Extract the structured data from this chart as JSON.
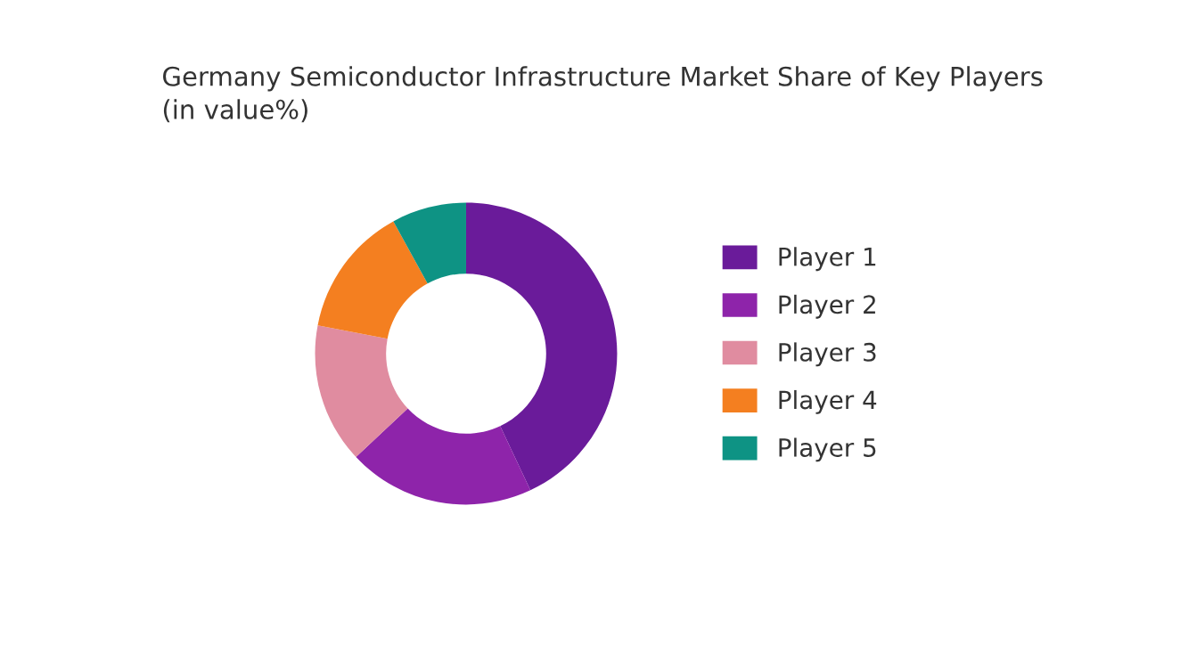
{
  "chart_data": {
    "type": "donut",
    "title": "Germany Semiconductor Infrastructure Market Share of Key Players\n(in value%)",
    "categories": [
      "Player 1",
      "Player 2",
      "Player 3",
      "Player 4",
      "Player 5"
    ],
    "values": [
      43,
      20,
      15,
      14,
      8
    ],
    "colors": [
      "#6a1b9a",
      "#8e24aa",
      "#e08ca0",
      "#f47f20",
      "#0e9384"
    ],
    "legend": "right"
  }
}
